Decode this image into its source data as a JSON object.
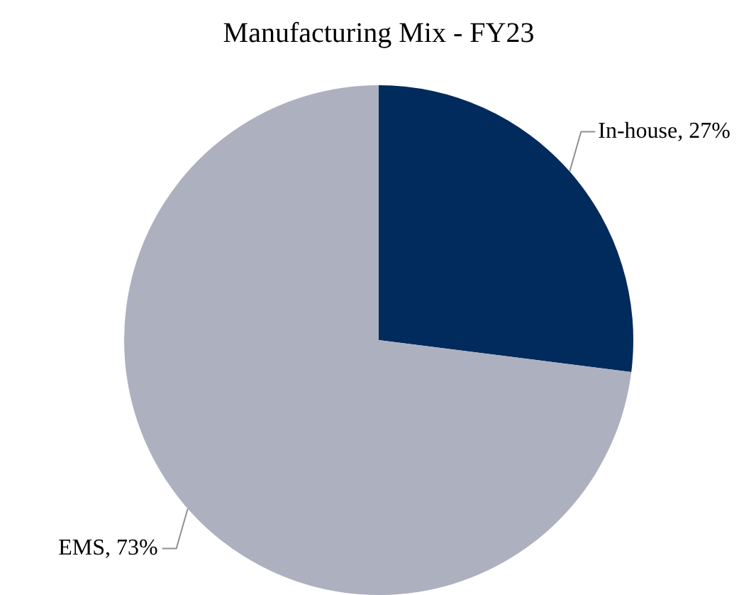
{
  "chart_data": {
    "type": "pie",
    "title": "Manufacturing Mix - FY23",
    "categories": [
      "In-house",
      "EMS"
    ],
    "values": [
      27,
      73
    ],
    "colors": [
      "#002b5c",
      "#adb0bf"
    ],
    "value_labels": [
      "27%",
      "73%"
    ],
    "legend": false
  }
}
